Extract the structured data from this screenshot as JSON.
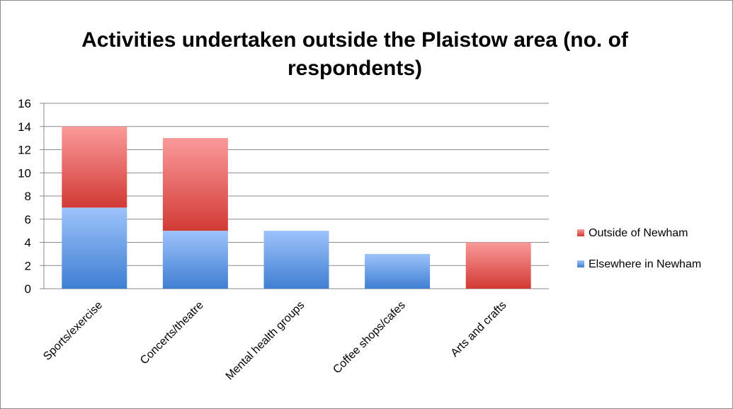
{
  "chart_data": {
    "type": "bar",
    "stacked": true,
    "title": "Activities undertaken outside the Plaistow area (no. of respondents)",
    "categories": [
      "Sports/exercise",
      "Concerts/theatre",
      "Mental health groups",
      "Coffee shops/cafes",
      "Arts and crafts"
    ],
    "series": [
      {
        "name": "Elsewhere in Newham",
        "values": [
          7,
          5,
          5,
          3,
          0
        ],
        "color": "#5b8fd9"
      },
      {
        "name": "Outside of Newham",
        "values": [
          7,
          8,
          0,
          0,
          4
        ],
        "color": "#d9534f"
      }
    ],
    "ylim": [
      0,
      16
    ],
    "yticks": [
      0,
      2,
      4,
      6,
      8,
      10,
      12,
      14,
      16
    ],
    "grid": true,
    "legend": "right"
  }
}
